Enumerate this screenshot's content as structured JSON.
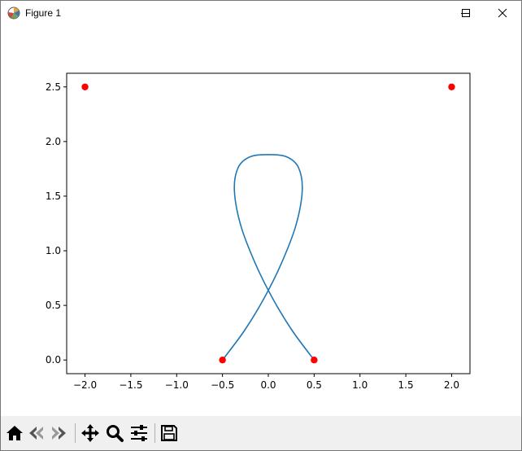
{
  "window": {
    "title": "Figure 1",
    "icons": [
      "matplotlib-icon",
      "minimize-icon",
      "maximize-icon",
      "close-icon"
    ]
  },
  "toolbar": {
    "buttons": [
      {
        "name": "home-icon",
        "label": "Home"
      },
      {
        "name": "back-icon",
        "label": "Back"
      },
      {
        "name": "forward-icon",
        "label": "Forward"
      },
      {
        "name": "pan-icon",
        "label": "Pan"
      },
      {
        "name": "zoom-icon",
        "label": "Zoom"
      },
      {
        "name": "configure-subplots-icon",
        "label": "Subplots"
      },
      {
        "name": "save-icon",
        "label": "Save"
      }
    ]
  },
  "chart_data": {
    "type": "line",
    "title": "",
    "xlabel": "",
    "ylabel": "",
    "xlim": [
      -2.2,
      2.2
    ],
    "ylim": [
      -0.125,
      2.625
    ],
    "xticks": [
      "−2.0",
      "−1.5",
      "−1.0",
      "−0.5",
      "0.0",
      "0.5",
      "1.0",
      "1.5",
      "2.0"
    ],
    "xtick_values": [
      -2.0,
      -1.5,
      -1.0,
      -0.5,
      0.0,
      0.5,
      1.0,
      1.5,
      2.0
    ],
    "yticks": [
      "0.0",
      "0.5",
      "1.0",
      "1.5",
      "2.0",
      "2.5"
    ],
    "ytick_values": [
      0.0,
      0.5,
      1.0,
      1.5,
      2.0,
      2.5
    ],
    "grid": false,
    "series": [
      {
        "kind": "line",
        "color": "#1f77b4",
        "x": [
          -0.5,
          -0.26,
          -0.05,
          0.14,
          0.3,
          0.37,
          0.33,
          0.2,
          0.0,
          -0.2,
          -0.33,
          -0.37,
          -0.3,
          -0.14,
          0.05,
          0.26,
          0.5
        ],
        "y": [
          0.0,
          0.27,
          0.56,
          0.88,
          1.23,
          1.55,
          1.76,
          1.86,
          1.88,
          1.86,
          1.76,
          1.55,
          1.23,
          0.88,
          0.56,
          0.27,
          0.0
        ]
      },
      {
        "kind": "scatter",
        "color": "#ff0000",
        "x": [
          -2.0,
          -0.5,
          0.5,
          2.0
        ],
        "y": [
          2.5,
          0.0,
          0.0,
          2.5
        ]
      }
    ]
  }
}
